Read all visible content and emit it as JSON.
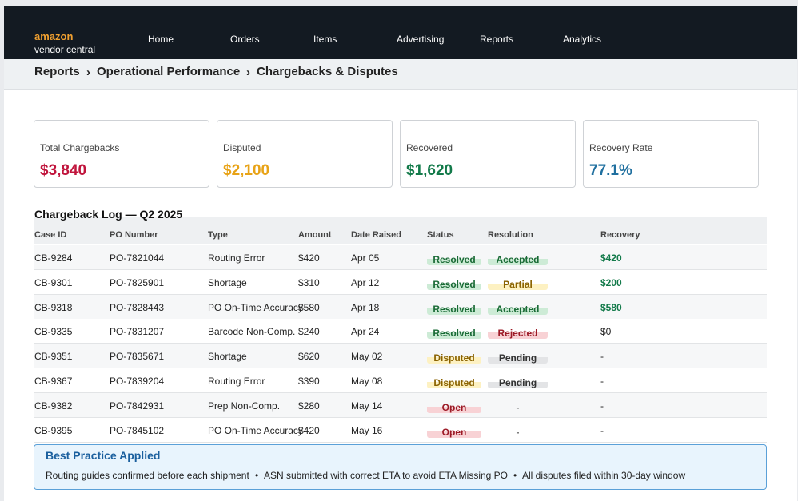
{
  "header": {
    "logo_line1": "amazon",
    "logo_line2": "vendor central",
    "nav": [
      "Home",
      "Orders",
      "Items",
      "Advertising",
      "Reports",
      "Analytics"
    ]
  },
  "breadcrumb": {
    "items": [
      "Reports",
      "Operational Performance",
      "Chargebacks & Disputes"
    ],
    "separator": "›"
  },
  "cards": [
    {
      "label": "Total Chargebacks",
      "value": "$3,840",
      "color": "#c0143c"
    },
    {
      "label": "Disputed",
      "value": "$2,100",
      "color": "#e8a317"
    },
    {
      "label": "Recovered",
      "value": "$1,620",
      "color": "#137a4a"
    },
    {
      "label": "Recovery Rate",
      "value": "77.1%",
      "color": "#1f6f9f"
    }
  ],
  "table": {
    "title": "Chargeback Log — Q2 2025",
    "columns": [
      "Case ID",
      "PO Number",
      "Type",
      "Amount",
      "Date Raised",
      "Status",
      "Resolution",
      "Recovery"
    ],
    "rows": [
      {
        "case_id": "CB-9284",
        "po": "PO-7821044",
        "type": "Routing Error",
        "amount": "$420",
        "date": "Apr 05",
        "status": "Resolved",
        "resolution": "Accepted",
        "recovery": "$420",
        "recovery_color": "#137a4a"
      },
      {
        "case_id": "CB-9301",
        "po": "PO-7825901",
        "type": "Shortage",
        "amount": "$310",
        "date": "Apr 12",
        "status": "Resolved",
        "resolution": "Partial",
        "recovery": "$200",
        "recovery_color": "#137a4a"
      },
      {
        "case_id": "CB-9318",
        "po": "PO-7828443",
        "type": "PO On-Time Accuracy",
        "amount": "$580",
        "date": "Apr 18",
        "status": "Resolved",
        "resolution": "Accepted",
        "recovery": "$580",
        "recovery_color": "#137a4a"
      },
      {
        "case_id": "CB-9335",
        "po": "PO-7831207",
        "type": "Barcode Non-Comp.",
        "amount": "$240",
        "date": "Apr 24",
        "status": "Resolved",
        "resolution": "Rejected",
        "recovery": "$0",
        "recovery_color": "#222222"
      },
      {
        "case_id": "CB-9351",
        "po": "PO-7835671",
        "type": "Shortage",
        "amount": "$620",
        "date": "May 02",
        "status": "Disputed",
        "resolution": "Pending",
        "recovery": "-",
        "recovery_color": "#222222"
      },
      {
        "case_id": "CB-9367",
        "po": "PO-7839204",
        "type": "Routing Error",
        "amount": "$390",
        "date": "May 08",
        "status": "Disputed",
        "resolution": "Pending",
        "recovery": "-",
        "recovery_color": "#222222"
      },
      {
        "case_id": "CB-9382",
        "po": "PO-7842931",
        "type": "Prep Non-Comp.",
        "amount": "$280",
        "date": "May 14",
        "status": "Open",
        "resolution": "-",
        "recovery": "-",
        "recovery_color": "#222222"
      },
      {
        "case_id": "CB-9395",
        "po": "PO-7845102",
        "type": "PO On-Time Accuracy",
        "amount": "$420",
        "date": "May 16",
        "status": "Open",
        "resolution": "-",
        "recovery": "-",
        "recovery_color": "#222222"
      }
    ]
  },
  "badge_colors": {
    "Resolved": {
      "bg": "#cdebd6",
      "fg": "#1a6b36"
    },
    "Accepted": {
      "bg": "#cdebd6",
      "fg": "#1a6b36"
    },
    "Partial": {
      "bg": "#fdf1c2",
      "fg": "#8a6200"
    },
    "Rejected": {
      "bg": "#f8d2d5",
      "fg": "#9c1a26"
    },
    "Disputed": {
      "bg": "#fdf1c2",
      "fg": "#8a6200"
    },
    "Pending": {
      "bg": "#e3e4e6",
      "fg": "#333333"
    },
    "Open": {
      "bg": "#f8d2d5",
      "fg": "#9c1a26"
    },
    "-": {
      "bg": "transparent",
      "fg": "#777777"
    }
  },
  "info": {
    "title": "Best Practice Applied",
    "items": [
      "Routing guides confirmed before each shipment",
      "ASN submitted with correct ETA to avoid ETA Missing PO",
      "All disputes filed within 30-day window"
    ],
    "separator": "•"
  }
}
